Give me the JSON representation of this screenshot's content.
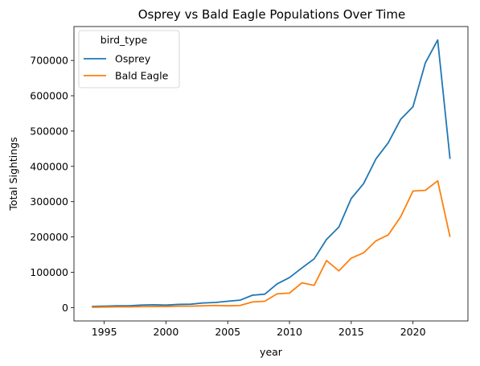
{
  "chart_data": {
    "type": "line",
    "title": "Osprey vs Bald Eagle Populations Over Time",
    "xlabel": "year",
    "ylabel": "Total Sightings",
    "xlim": [
      1992.55,
      2024.45
    ],
    "ylim": [
      -37900,
      796000
    ],
    "xticks": [
      1995,
      2000,
      2005,
      2010,
      2015,
      2020
    ],
    "yticks": [
      0,
      100000,
      200000,
      300000,
      400000,
      500000,
      600000,
      700000
    ],
    "grid": false,
    "legend": {
      "title": "bird_type",
      "placement": "top-left"
    },
    "x": [
      1994,
      1995,
      1996,
      1997,
      1998,
      1999,
      2000,
      2001,
      2002,
      2003,
      2004,
      2005,
      2006,
      2007,
      2008,
      2009,
      2010,
      2011,
      2012,
      2013,
      2014,
      2015,
      2016,
      2017,
      2018,
      2019,
      2020,
      2021,
      2022,
      2023
    ],
    "series": [
      {
        "name": "Osprey",
        "color": "#1f77b4",
        "values": [
          3000,
          4000,
          5000,
          5000,
          7000,
          8000,
          7000,
          9000,
          9500,
          13000,
          14500,
          18000,
          21000,
          35000,
          38000,
          67000,
          85000,
          112000,
          138000,
          193000,
          228000,
          309000,
          351000,
          421000,
          467000,
          533000,
          569000,
          693000,
          758000,
          421000
        ]
      },
      {
        "name": "Bald Eagle",
        "color": "#ff7f0e",
        "values": [
          1000,
          1500,
          2000,
          2000,
          2500,
          3000,
          3000,
          4000,
          4000,
          5000,
          6000,
          5000,
          6000,
          16000,
          18000,
          39000,
          41000,
          70000,
          63000,
          133000,
          104000,
          140000,
          155000,
          189000,
          206000,
          257000,
          330000,
          332000,
          359000,
          200000
        ]
      }
    ]
  }
}
